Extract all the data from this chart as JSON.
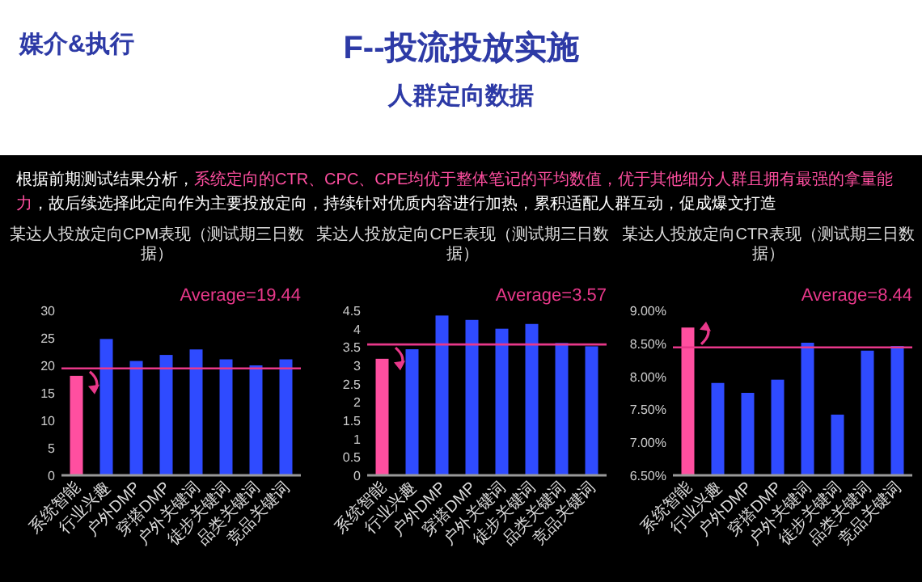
{
  "chart_data": [
    {
      "type": "other",
      "title": "F--投流投放实施",
      "subtitle": "人群定向数据",
      "annotations": [
        "媒介&执行",
        "根据前期测试结果分析，",
        "系统定向的CTR、CPC、CPE均优于整体笔记的平均数值，优于其他细分人群且拥有最强的拿量能力",
        "，故后续选择此定向作为主要投放定向，持续针对优质内容进行加热，累积适配人群互动，促成爆文打造"
      ]
    },
    {
      "type": "bar",
      "title": "某达人投放定向CPM表现（测试期三日数据）",
      "categories": [
        "系统智能",
        "行业兴趣",
        "户外DMP",
        "穿搭DMP",
        "户外关键词",
        "徒步关键词",
        "品类关键词",
        "竞品关键词"
      ],
      "values": [
        18.1,
        24.8,
        20.8,
        21.9,
        22.9,
        21.1,
        20.0,
        21.1
      ],
      "colors": [
        "#ff4fa0",
        "#2f4bff",
        "#2f4bff",
        "#2f4bff",
        "#2f4bff",
        "#2f4bff",
        "#2f4bff",
        "#2f4bff"
      ],
      "ylim": [
        0,
        30
      ],
      "yticks": [
        0,
        5,
        10,
        15,
        20,
        25,
        30
      ],
      "ref_lines": [
        {
          "axis": "y",
          "value": 19.44,
          "label": "Average=19.44",
          "color": "#e8388a"
        }
      ]
    },
    {
      "type": "bar",
      "title": "某达人投放定向CPE表现（测试期三日数据）",
      "categories": [
        "系统智能",
        "行业兴趣",
        "户外DMP",
        "穿搭DMP",
        "户外关键词",
        "徒步关键词",
        "品类关键词",
        "竞品关键词"
      ],
      "values": [
        3.18,
        3.44,
        4.36,
        4.24,
        4.0,
        4.13,
        3.61,
        3.52
      ],
      "colors": [
        "#ff4fa0",
        "#2f4bff",
        "#2f4bff",
        "#2f4bff",
        "#2f4bff",
        "#2f4bff",
        "#2f4bff",
        "#2f4bff"
      ],
      "ylim": [
        0,
        4.5
      ],
      "yticks": [
        0,
        0.5,
        1,
        1.5,
        2,
        2.5,
        3,
        3.5,
        4,
        4.5
      ],
      "ref_lines": [
        {
          "axis": "y",
          "value": 3.57,
          "label": "Average=3.57",
          "color": "#e8388a"
        }
      ]
    },
    {
      "type": "bar",
      "title": "某达人投放定向CTR表现（测试期三日数据）",
      "categories": [
        "系统智能",
        "行业兴趣",
        "户外DMP",
        "穿搭DMP",
        "户外关键词",
        "徒步关键词",
        "品类关键词",
        "竞品关键词"
      ],
      "values": [
        8.74,
        7.9,
        7.75,
        7.95,
        8.51,
        7.42,
        8.39,
        8.46
      ],
      "colors": [
        "#ff4fa0",
        "#2f4bff",
        "#2f4bff",
        "#2f4bff",
        "#2f4bff",
        "#2f4bff",
        "#2f4bff",
        "#2f4bff"
      ],
      "ylim": [
        6.5,
        9.0
      ],
      "yticks": [
        {
          "value": 6.5,
          "label": "6.50%"
        },
        {
          "value": 7.0,
          "label": "7.00%"
        },
        {
          "value": 7.5,
          "label": "7.50%"
        },
        {
          "value": 8.0,
          "label": "8.00%"
        },
        {
          "value": 8.5,
          "label": "8.50%"
        },
        {
          "value": 9.0,
          "label": "9.00%"
        }
      ],
      "ref_lines": [
        {
          "axis": "y",
          "value": 8.44,
          "label": "Average=8.44",
          "color": "#e8388a"
        }
      ]
    }
  ]
}
